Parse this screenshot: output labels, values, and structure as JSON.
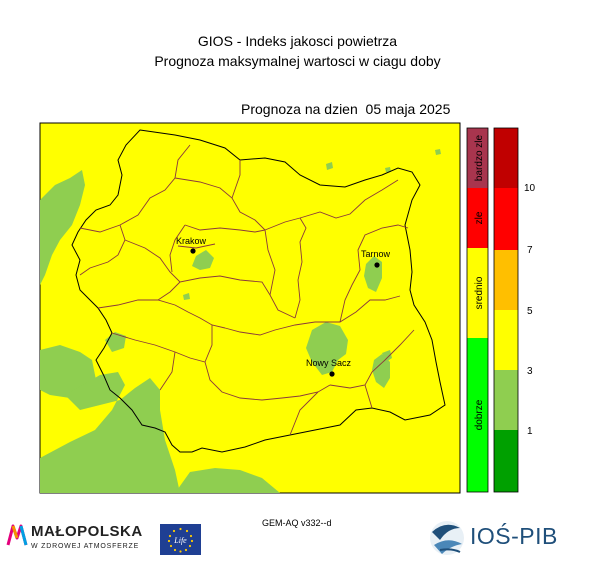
{
  "header": {
    "title_line1": "GIOS - Indeks jakosci powietrza",
    "title_line2": "Prognoza maksymalnej wartosci w ciagu doby",
    "forecast_date": "Prognoza na dzien  05 maja 2025"
  },
  "cities": [
    {
      "name": "Krakow"
    },
    {
      "name": "Tarnow"
    },
    {
      "name": "Nowy Sacz"
    }
  ],
  "category_legend": [
    {
      "label": "bardzo zle",
      "color": "#a8354e"
    },
    {
      "label": "zle",
      "color": "#ff0000"
    },
    {
      "label": "srednio",
      "color": "#ffff00"
    },
    {
      "label": "dobrze",
      "color": "#00ff00"
    }
  ],
  "scale": {
    "colors": [
      "#00a000",
      "#8fce50",
      "#ffff00",
      "#ffbf00",
      "#ff0000",
      "#c00000"
    ],
    "tick_labels": [
      "1",
      "3",
      "5",
      "7",
      "10"
    ]
  },
  "map_colors": {
    "background": "#ffff00",
    "low": "#8fce50"
  },
  "footer": {
    "model": "GEM-AQ v332--d",
    "malopolska_name": "MAŁOPOLSKA",
    "malopolska_sub": "W ZDROWEJ ATMOSFERZE",
    "eu_logo_text": "Life",
    "ios_name": "IOŚ-PIB"
  }
}
